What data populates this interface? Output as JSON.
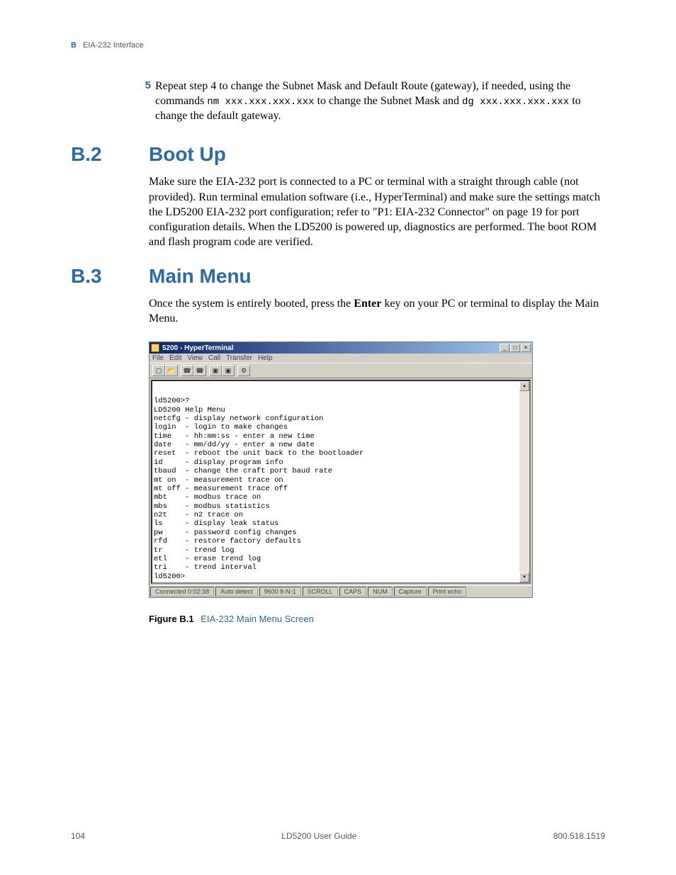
{
  "header": {
    "section_letter": "B",
    "section_title": "EIA-232 Interface"
  },
  "step5": {
    "num": "5",
    "text_a": "Repeat step 4 to change the Subnet Mask and Default Route (gateway), if needed, using the commands ",
    "code_a": "nm xxx.xxx.xxx.xxx",
    "text_b": " to change the Subnet Mask and ",
    "code_b": "dg xxx.xxx.xxx.xxx",
    "text_c": " to change the default gateway."
  },
  "sec_b2": {
    "num": "B.2",
    "title": "Boot Up",
    "body": "Make sure the EIA-232 port is connected to a PC or terminal with a straight through cable (not provided). Run terminal emulation software (i.e., HyperTerminal) and make sure the settings match the LD5200 EIA-232 port configuration; refer to \"P1: EIA-232 Connector\" on page 19 for port configuration details. When the LD5200 is powered up, diagnostics are performed. The boot ROM and flash program code are verified."
  },
  "sec_b3": {
    "num": "B.3",
    "title": "Main Menu",
    "body_a": "Once the system is entirely booted, press the ",
    "body_bold": "Enter",
    "body_b": " key on your PC or terminal to display the Main Menu."
  },
  "terminal": {
    "title": "5200 - HyperTerminal",
    "menus": [
      "File",
      "Edit",
      "View",
      "Call",
      "Transfer",
      "Help"
    ],
    "content": "ld5200>?\nLD5200 Help Menu\nnetcfg - display network configuration\nlogin  - login to make changes\ntime   - hh:mm:ss - enter a new time\ndate   - mm/dd/yy - enter a new date\nreset  - reboot the unit back to the bootloader\nid     - display program info\ntbaud  - change the craft port baud rate\nmt on  - measurement trace on\nmt off - measurement trace off\nmbt    - modbus trace on\nmbs    - modbus statistics\nn2t    - n2 trace on\nls     - display leak status\npw     - password config changes\nrfd    - restore factory defaults\ntr     - trend log\netl    - erase trend log\ntri    - trend interval\nld5200>",
    "status": {
      "connected": "Connected 0:02:38",
      "detect": "Auto detect",
      "port": "9600 8-N-1",
      "scroll": "SCROLL",
      "caps": "CAPS",
      "num": "NUM",
      "capture": "Capture",
      "echo": "Print echo"
    }
  },
  "figure": {
    "label": "Figure B.1",
    "title": "EIA-232 Main Menu Screen"
  },
  "footer": {
    "page": "104",
    "doc": "LD5200 User Guide",
    "phone": "800.518.1519"
  }
}
